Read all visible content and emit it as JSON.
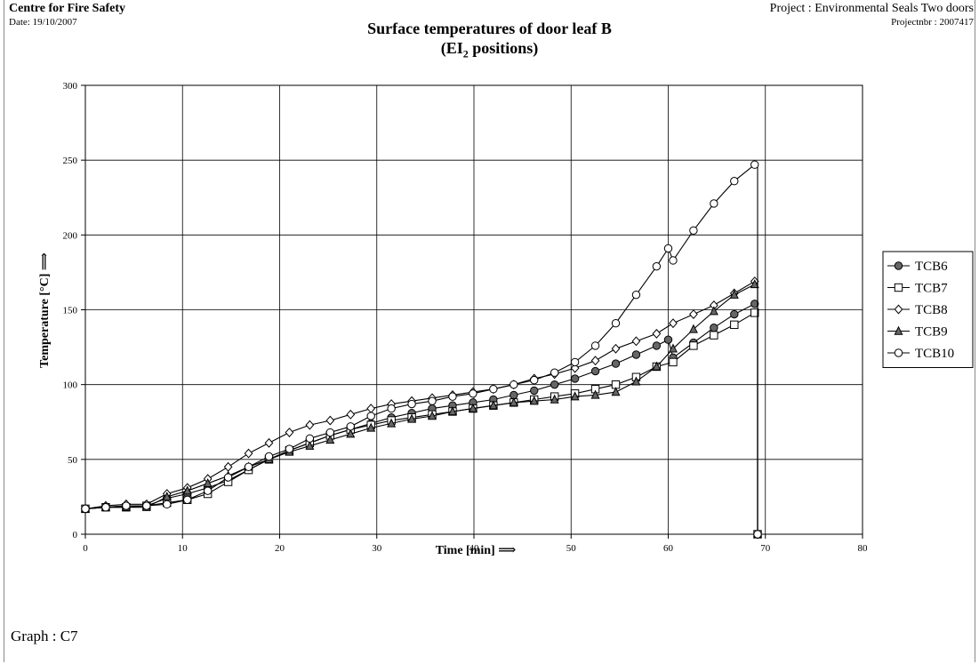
{
  "header": {
    "organization": "Centre for Fire Safety",
    "date": "Date: 19/10/2007",
    "project": "Project : Environmental Seals Two doors",
    "project_number": "Projectnbr : 2007417"
  },
  "footer": {
    "graph_label": "Graph : C7"
  },
  "chart_data": {
    "type": "line",
    "title": "Surface temperatures of door leaf B",
    "subtitle_prefix": "(EI",
    "subtitle_sub": "2",
    "subtitle_suffix": " positions)",
    "xlabel": "Time [min] ⟹",
    "ylabel": "Temperature [°C] ⟹",
    "xlim": [
      0,
      80
    ],
    "ylim": [
      0,
      300
    ],
    "xticks": [
      0,
      10,
      20,
      30,
      40,
      50,
      60,
      70,
      80
    ],
    "yticks": [
      0,
      50,
      100,
      150,
      200,
      250,
      300
    ],
    "grid": true,
    "legend_position": "right",
    "series": [
      {
        "name": "TCB6",
        "marker": "circle-filled",
        "x": [
          0,
          2.1,
          4.2,
          6.3,
          8.4,
          10.5,
          12.6,
          14.7,
          16.8,
          18.9,
          21,
          23.1,
          25.2,
          27.3,
          29.4,
          31.5,
          33.6,
          35.7,
          37.8,
          39.9,
          42,
          44.1,
          46.2,
          48.3,
          50.4,
          52.5,
          54.6,
          56.7,
          58.8,
          60,
          60.5,
          62.6,
          64.7,
          66.8,
          68.9,
          69.2,
          69.2
        ],
        "y": [
          17,
          18,
          19,
          19,
          24,
          27,
          31,
          36,
          43,
          50,
          56,
          61,
          66,
          70,
          74,
          78,
          81,
          84,
          86,
          88,
          90,
          93,
          96,
          100,
          104,
          109,
          114,
          120,
          126,
          130,
          118,
          128,
          138,
          147,
          154,
          154,
          0
        ]
      },
      {
        "name": "TCB7",
        "marker": "square-open",
        "x": [
          0,
          2.1,
          4.2,
          6.3,
          8.4,
          10.5,
          12.6,
          14.7,
          16.8,
          18.9,
          21,
          23.1,
          25.2,
          27.3,
          29.4,
          31.5,
          33.6,
          35.7,
          37.8,
          39.9,
          42,
          44.1,
          46.2,
          48.3,
          50.4,
          52.5,
          54.6,
          56.7,
          58.8,
          60.5,
          62.6,
          64.7,
          66.8,
          68.9,
          69.2,
          69.2
        ],
        "y": [
          17,
          18,
          18,
          19,
          21,
          23,
          27,
          35,
          43,
          50,
          56,
          61,
          66,
          70,
          73,
          76,
          78,
          80,
          82,
          84,
          86,
          88,
          90,
          92,
          94,
          97,
          100,
          105,
          112,
          115,
          126,
          133,
          140,
          148,
          148,
          0
        ]
      },
      {
        "name": "TCB8",
        "marker": "diamond-open",
        "x": [
          0,
          2.1,
          4.2,
          6.3,
          8.4,
          10.5,
          12.6,
          14.7,
          16.8,
          18.9,
          21,
          23.1,
          25.2,
          27.3,
          29.4,
          31.5,
          33.6,
          35.7,
          37.8,
          39.9,
          42,
          44.1,
          46.2,
          48.3,
          50.4,
          52.5,
          54.6,
          56.7,
          58.8,
          60.5,
          62.6,
          64.7,
          66.8,
          68.9,
          69.2,
          69.2
        ],
        "y": [
          17,
          19,
          20,
          20,
          27,
          31,
          37,
          45,
          54,
          61,
          68,
          73,
          76,
          80,
          84,
          87,
          89,
          91,
          93,
          95,
          97,
          100,
          104,
          107,
          111,
          116,
          124,
          129,
          134,
          141,
          147,
          153,
          161,
          169,
          169,
          0
        ]
      },
      {
        "name": "TCB9",
        "marker": "triangle-filled",
        "x": [
          0,
          2.1,
          4.2,
          6.3,
          8.4,
          10.5,
          12.6,
          14.7,
          16.8,
          18.9,
          21,
          23.1,
          25.2,
          27.3,
          29.4,
          31.5,
          33.6,
          35.7,
          37.8,
          39.9,
          42,
          44.1,
          46.2,
          48.3,
          50.4,
          52.5,
          54.6,
          56.7,
          58.8,
          60.5,
          62.6,
          64.7,
          66.8,
          68.9,
          69.2,
          69.2
        ],
        "y": [
          17,
          18,
          18,
          18,
          25,
          29,
          34,
          39,
          45,
          50,
          55,
          59,
          63,
          67,
          71,
          74,
          77,
          79,
          82,
          84,
          86,
          88,
          89,
          90,
          92,
          93,
          95,
          102,
          112,
          124,
          137,
          149,
          160,
          167,
          167,
          0
        ]
      },
      {
        "name": "TCB10",
        "marker": "circle-open",
        "x": [
          0,
          2.1,
          4.2,
          6.3,
          8.4,
          10.5,
          12.6,
          14.7,
          16.8,
          18.9,
          21,
          23.1,
          25.2,
          27.3,
          29.4,
          31.5,
          33.6,
          35.7,
          37.8,
          39.9,
          42,
          44.1,
          46.2,
          48.3,
          50.4,
          52.5,
          54.6,
          56.7,
          58.8,
          60,
          60.5,
          62.6,
          64.7,
          66.8,
          68.9,
          69.2,
          69.2
        ],
        "y": [
          17,
          18,
          19,
          19,
          20,
          23,
          29,
          38,
          45,
          52,
          57,
          64,
          68,
          72,
          79,
          84,
          87,
          89,
          92,
          94,
          97,
          100,
          103,
          108,
          115,
          126,
          141,
          160,
          179,
          191,
          183,
          203,
          221,
          236,
          247,
          247,
          0
        ]
      }
    ]
  }
}
